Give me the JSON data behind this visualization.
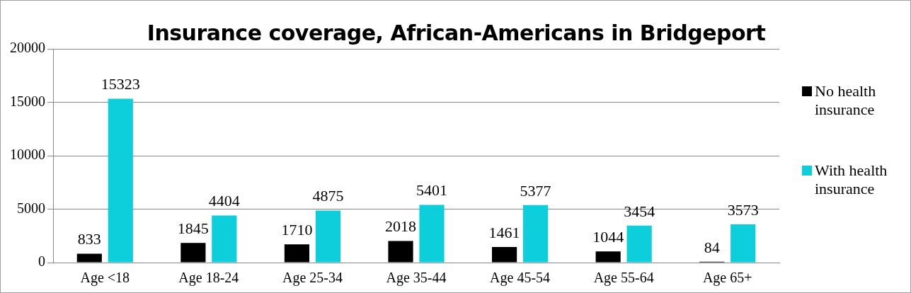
{
  "chart_data": {
    "type": "bar",
    "title": "Insurance coverage, African-Americans in Bridgeport",
    "categories": [
      "Age <18",
      "Age 18-24",
      "Age 25-34",
      "Age 35-44",
      "Age 45-54",
      "Age 55-64",
      "Age 65+"
    ],
    "series": [
      {
        "name": "No health insurance",
        "color": "#000000",
        "values": [
          833,
          1845,
          1710,
          2018,
          1461,
          1044,
          84
        ]
      },
      {
        "name": "With health insurance",
        "color": "#0ccfdb",
        "values": [
          15323,
          4404,
          4875,
          5401,
          5377,
          3454,
          3573
        ]
      }
    ],
    "ylim": [
      0,
      20000
    ],
    "yticks": [
      0,
      5000,
      10000,
      15000,
      20000
    ],
    "grid": "y",
    "legend": "right",
    "data_labels": true
  }
}
